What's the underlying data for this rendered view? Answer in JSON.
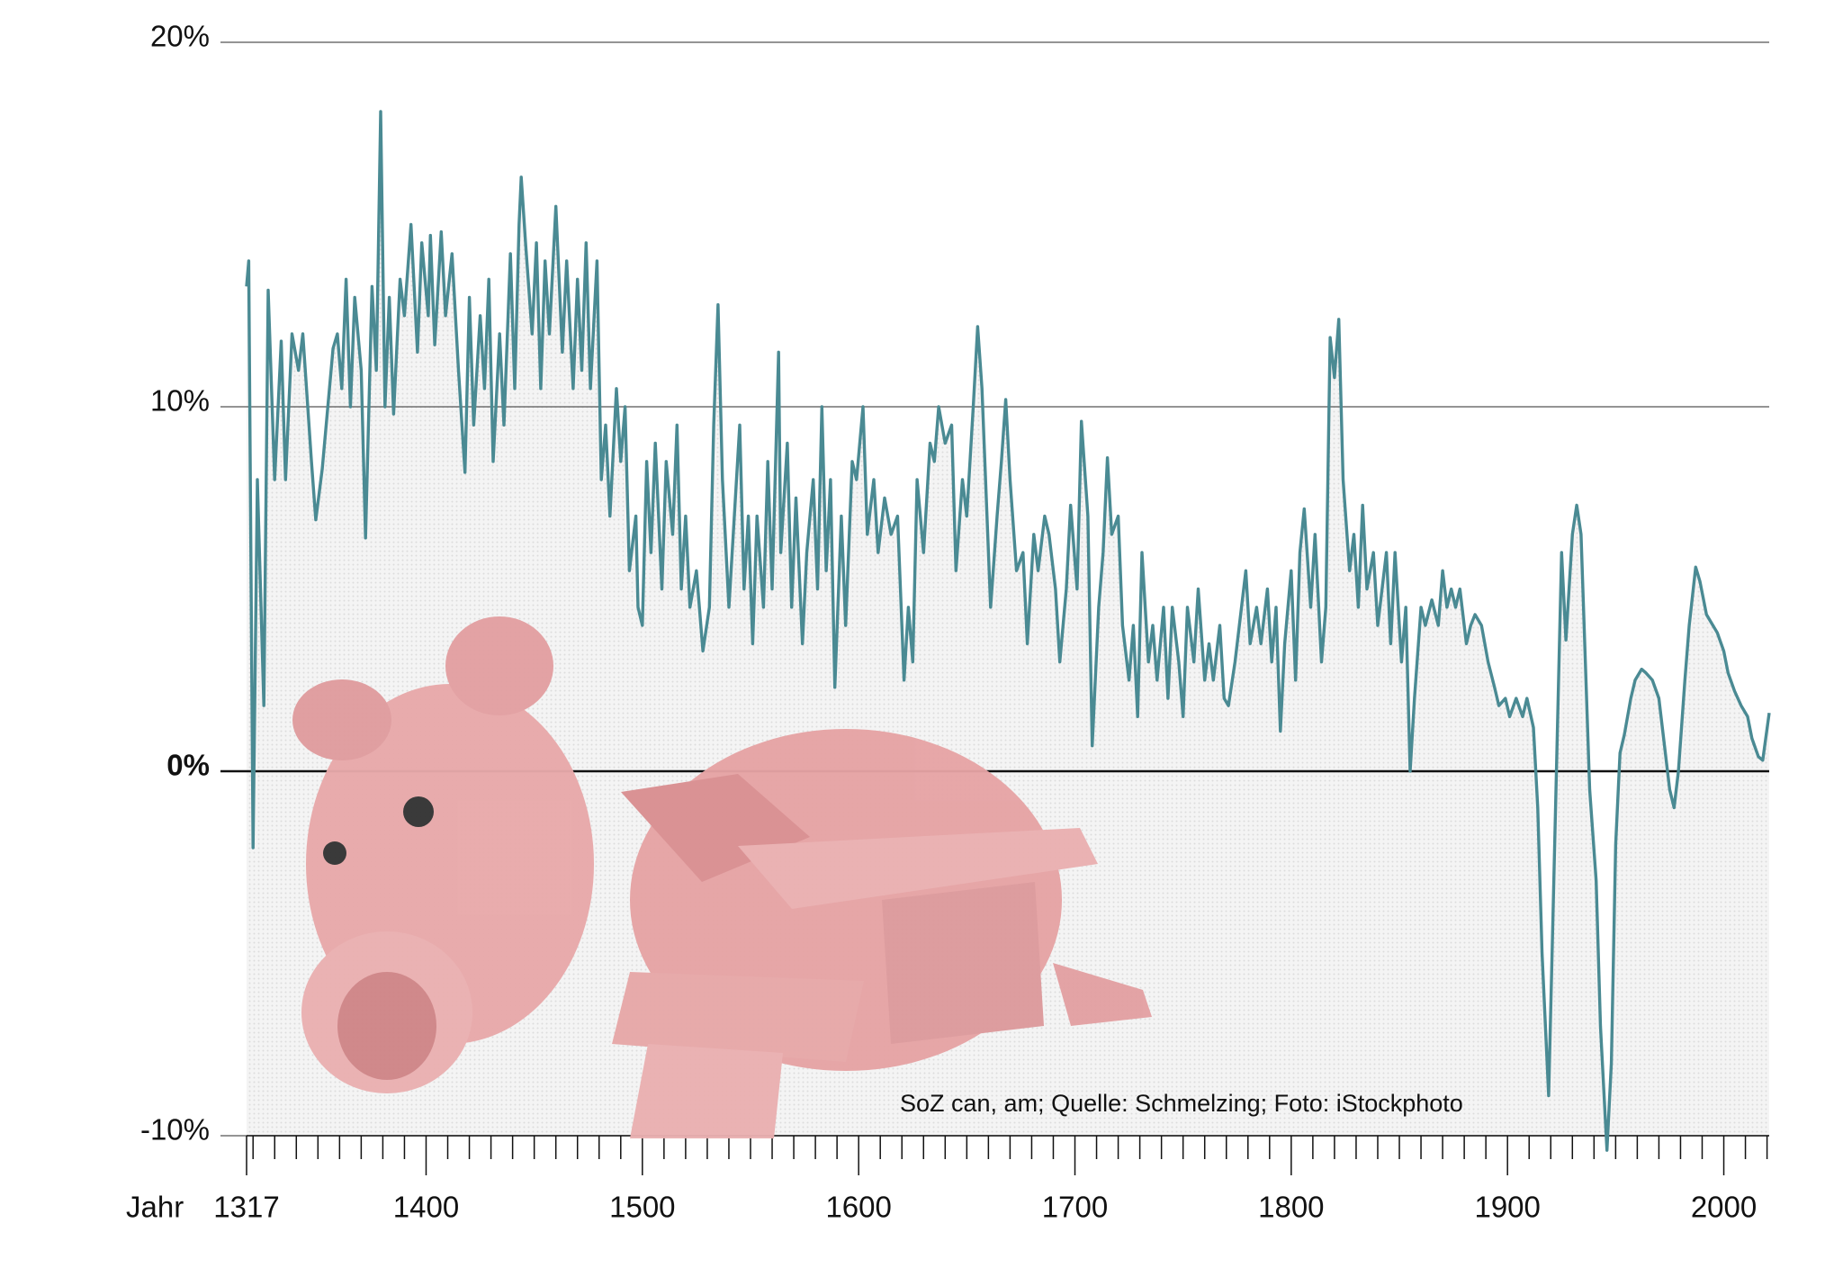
{
  "chart_data": {
    "type": "line",
    "xlabel": "Jahr",
    "source": "SoZ can, am; Quelle: Schmelzing; Foto: iStockphoto",
    "color": "#4a8a93",
    "xlim": [
      1317,
      2021
    ],
    "ylim": [
      -10,
      20
    ],
    "yticks": [
      {
        "value": -10,
        "label": "-10%"
      },
      {
        "value": 0,
        "label": "0%"
      },
      {
        "value": 10,
        "label": "10%"
      },
      {
        "value": 20,
        "label": "20%"
      }
    ],
    "xticks": [
      1317,
      1400,
      1500,
      1600,
      1700,
      1800,
      1900,
      2000
    ],
    "xminorticks": [
      1320,
      1330,
      1340,
      1350,
      1360,
      1370,
      1380,
      1390,
      1410,
      1420,
      1430,
      1440,
      1450,
      1460,
      1470,
      1480,
      1490,
      1510,
      1520,
      1530,
      1540,
      1550,
      1560,
      1570,
      1580,
      1590,
      1610,
      1620,
      1630,
      1640,
      1650,
      1660,
      1670,
      1680,
      1690,
      1710,
      1720,
      1730,
      1740,
      1750,
      1760,
      1770,
      1780,
      1790,
      1810,
      1820,
      1830,
      1840,
      1850,
      1860,
      1870,
      1880,
      1890,
      1910,
      1920,
      1930,
      1940,
      1950,
      1960,
      1970,
      1980,
      1990,
      2010,
      2020
    ],
    "x": [
      1317,
      1318,
      1320,
      1322,
      1325,
      1327,
      1330,
      1333,
      1335,
      1338,
      1341,
      1343,
      1347,
      1349,
      1352,
      1357,
      1359,
      1361,
      1363,
      1365,
      1367,
      1370,
      1372,
      1375,
      1377,
      1379,
      1381,
      1383,
      1385,
      1388,
      1390,
      1393,
      1396,
      1398,
      1401,
      1402,
      1404,
      1407,
      1409,
      1412,
      1415,
      1418,
      1420,
      1422,
      1425,
      1427,
      1429,
      1431,
      1434,
      1436,
      1439,
      1441,
      1443,
      1444,
      1446,
      1449,
      1451,
      1453,
      1455,
      1457,
      1460,
      1463,
      1465,
      1468,
      1470,
      1472,
      1474,
      1476,
      1479,
      1481,
      1483,
      1485,
      1488,
      1490,
      1492,
      1494,
      1497,
      1498,
      1500,
      1502,
      1504,
      1506,
      1509,
      1511,
      1514,
      1516,
      1518,
      1520,
      1522,
      1525,
      1528,
      1531,
      1533,
      1535,
      1537,
      1540,
      1542,
      1545,
      1547,
      1549,
      1551,
      1553,
      1556,
      1558,
      1560,
      1563,
      1564,
      1567,
      1569,
      1571,
      1574,
      1576,
      1579,
      1581,
      1583,
      1585,
      1587,
      1589,
      1592,
      1594,
      1597,
      1599,
      1602,
      1604,
      1607,
      1609,
      1612,
      1615,
      1618,
      1621,
      1623,
      1625,
      1627,
      1630,
      1633,
      1635,
      1637,
      1640,
      1643,
      1645,
      1648,
      1650,
      1653,
      1655,
      1657,
      1659,
      1661,
      1664,
      1666,
      1668,
      1670,
      1673,
      1676,
      1678,
      1681,
      1683,
      1686,
      1688,
      1691,
      1693,
      1696,
      1698,
      1701,
      1703,
      1706,
      1708,
      1711,
      1713,
      1715,
      1717,
      1720,
      1722,
      1725,
      1727,
      1729,
      1731,
      1734,
      1736,
      1738,
      1741,
      1743,
      1745,
      1748,
      1750,
      1752,
      1755,
      1757,
      1760,
      1762,
      1764,
      1767,
      1769,
      1771,
      1774,
      1776,
      1779,
      1781,
      1784,
      1786,
      1789,
      1791,
      1793,
      1795,
      1797,
      1800,
      1802,
      1804,
      1806,
      1809,
      1811,
      1814,
      1816,
      1818,
      1820,
      1822,
      1824,
      1827,
      1829,
      1831,
      1833,
      1835,
      1838,
      1840,
      1842,
      1844,
      1846,
      1848,
      1851,
      1853,
      1855,
      1857,
      1860,
      1862,
      1865,
      1868,
      1870,
      1872,
      1874,
      1876,
      1878,
      1881,
      1883,
      1885,
      1888,
      1891,
      1894,
      1896,
      1899,
      1901,
      1904,
      1907,
      1909,
      1912,
      1914,
      1916,
      1919,
      1921,
      1923,
      1925,
      1927,
      1930,
      1932,
      1934,
      1936,
      1938,
      1941,
      1943,
      1946,
      1948,
      1950,
      1952,
      1954,
      1957,
      1959,
      1962,
      1964,
      1967,
      1970,
      1972,
      1975,
      1977,
      1979,
      1982,
      1984,
      1987,
      1989,
      1992,
      1994,
      1997,
      2000,
      2002,
      2005,
      2008,
      2011,
      2013,
      2016,
      2018,
      2021
    ],
    "values": [
      13.3,
      14,
      -2.1,
      8,
      1.8,
      13.2,
      8,
      11.8,
      8,
      12,
      11,
      12,
      8.5,
      6.9,
      8.3,
      11.6,
      12,
      10.5,
      13.5,
      10,
      13,
      11,
      6.4,
      13.3,
      11,
      18.1,
      10,
      13,
      9.8,
      13.5,
      12.5,
      15,
      11.5,
      14.5,
      12.5,
      14.7,
      11.7,
      14.8,
      12.5,
      14.2,
      11,
      8.2,
      13,
      9.5,
      12.5,
      10.5,
      13.5,
      8.5,
      12,
      9.5,
      14.2,
      10.5,
      15,
      16.3,
      14.5,
      12,
      14.5,
      10.5,
      14,
      12,
      15.5,
      11.5,
      14,
      10.5,
      13.5,
      11,
      14.5,
      10.5,
      14,
      8,
      9.5,
      7,
      10.5,
      8.5,
      10,
      5.5,
      7,
      4.5,
      4,
      8.5,
      6,
      9,
      5,
      8.5,
      6.5,
      9.5,
      5,
      7,
      4.5,
      5.5,
      3.3,
      4.5,
      9.5,
      12.8,
      8,
      4.5,
      6.5,
      9.5,
      5,
      7,
      3.5,
      7,
      4.5,
      8.5,
      5,
      11.5,
      6,
      9,
      4.5,
      7.5,
      3.5,
      6,
      8,
      5,
      10,
      5.5,
      8,
      2.3,
      7,
      4,
      8.5,
      8,
      10,
      6.5,
      8,
      6,
      7.5,
      6.5,
      7,
      2.5,
      4.5,
      3,
      8,
      6,
      9,
      8.5,
      10,
      9,
      9.5,
      5.5,
      8,
      7,
      10,
      12.2,
      10.5,
      7.5,
      4.5,
      7,
      8.5,
      10.2,
      8,
      5.5,
      6,
      3.5,
      6.5,
      5.5,
      7,
      6.5,
      5,
      3,
      5,
      7.3,
      5,
      9.6,
      7,
      0.7,
      4.5,
      6,
      8.6,
      6.5,
      7,
      4,
      2.5,
      4,
      1.5,
      6,
      3,
      4,
      2.5,
      4.5,
      2,
      4.5,
      3,
      1.5,
      4.5,
      3,
      5,
      2.5,
      3.5,
      2.5,
      4,
      2,
      1.8,
      3,
      4,
      5.5,
      3.5,
      4.5,
      3.5,
      5,
      3,
      4.5,
      1.1,
      3.5,
      5.5,
      2.5,
      6,
      7.2,
      4.5,
      6.5,
      3,
      4.5,
      11.9,
      10.8,
      12.4,
      8,
      5.5,
      6.5,
      4.5,
      7.3,
      5,
      6,
      4,
      5,
      6,
      3.5,
      6,
      3,
      4.5,
      0,
      2,
      4.5,
      4,
      4.7,
      4,
      5.5,
      4.5,
      5,
      4.5,
      5,
      3.5,
      4,
      4.3,
      4,
      3,
      2.3,
      1.8,
      2,
      1.5,
      2,
      1.5,
      2,
      1.2,
      -1,
      -5,
      -8.9,
      -4,
      1,
      6,
      3.6,
      6.5,
      7.3,
      6.5,
      3,
      -0.5,
      -3,
      -7,
      -10.4,
      -8,
      -2,
      0.5,
      1,
      2,
      2.5,
      2.8,
      2.7,
      2.5,
      2,
      1,
      -0.5,
      -1,
      0,
      2.5,
      4,
      5.6,
      5.2,
      4.3,
      4.1,
      3.8,
      3.3,
      2.7,
      2.2,
      1.8,
      1.5,
      0.9,
      0.4,
      0.3,
      1.6
    ]
  }
}
